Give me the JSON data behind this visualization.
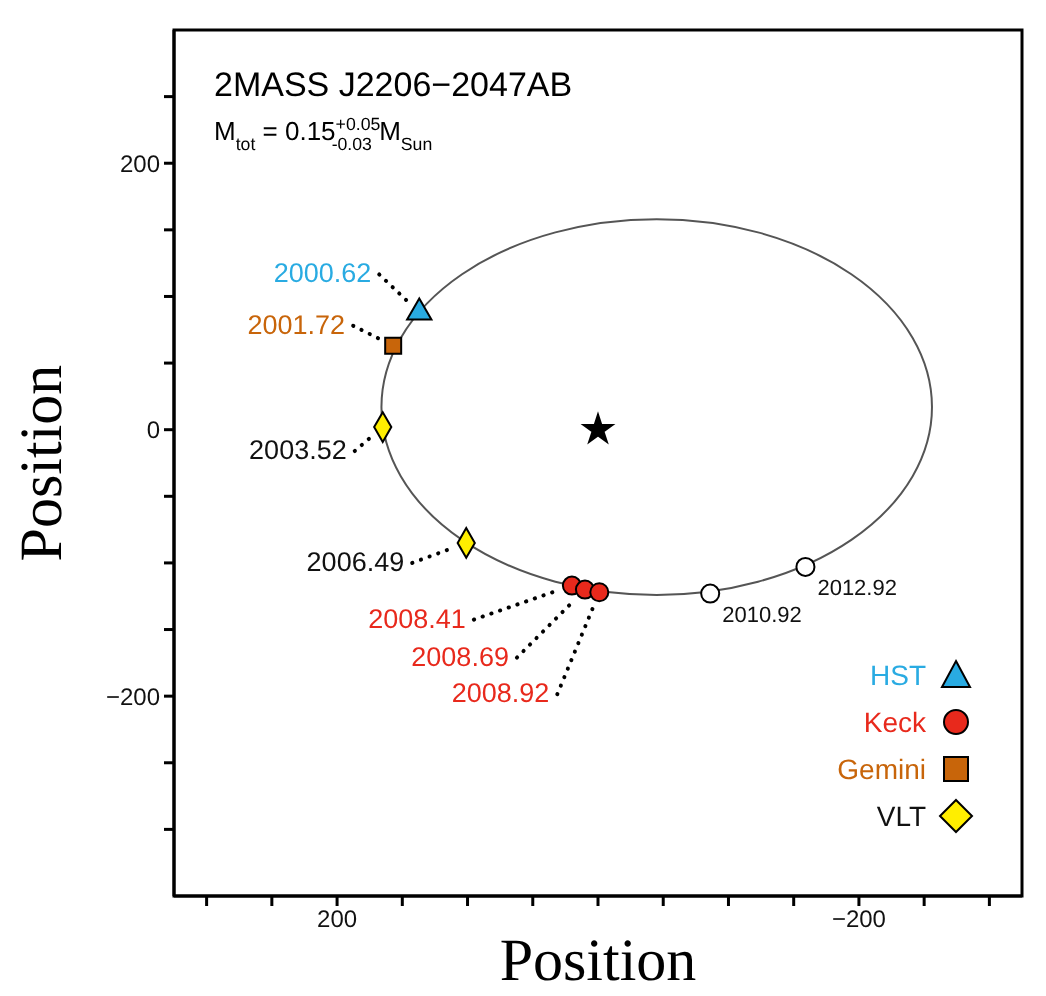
{
  "chart_data": {
    "type": "scatter",
    "title": "2MASS J2206−2047AB",
    "subtitle": "M$_{tot}$ = 0.15$^{+0.05}$$_{-0.03}$ M$_{Sun}$",
    "xlabel": "Position",
    "ylabel": "Position",
    "xlim": [
      325,
      -325
    ],
    "ylim": [
      -350,
      300
    ],
    "xticks": [
      {
        "value": 300,
        "label": null
      },
      {
        "value": 250,
        "label": null
      },
      200,
      {
        "value": 150,
        "label": null
      },
      {
        "value": 100,
        "label": null
      },
      {
        "value": 50,
        "label": null
      },
      {
        "value": 0,
        "label": null
      },
      {
        "value": -50,
        "label": null
      },
      {
        "value": -100,
        "label": null
      },
      {
        "value": -150,
        "label": null
      },
      {
        "value": -200,
        "label": "−200"
      },
      {
        "value": -250,
        "label": null
      },
      {
        "value": -300,
        "label": null
      }
    ],
    "yticks": [
      {
        "value": 250,
        "label": null
      },
      200,
      {
        "value": 150,
        "label": null
      },
      {
        "value": 100,
        "label": null
      },
      {
        "value": 50,
        "label": null
      },
      0,
      {
        "value": -50,
        "label": null
      },
      {
        "value": -100,
        "label": null
      },
      {
        "value": -150,
        "label": null
      },
      {
        "value": -200,
        "label": "−200"
      },
      {
        "value": -250,
        "label": null
      },
      {
        "value": -300,
        "label": null
      }
    ],
    "grid": false,
    "legend": "bottom right",
    "annotations": [
      {
        "text": "2000.62",
        "x": 137,
        "y": 88
      },
      {
        "text": "2001.72",
        "x": 157,
        "y": 63
      },
      {
        "text": "2003.52",
        "x": 165,
        "y": 2
      },
      {
        "text": "2006.49",
        "x": 101,
        "y": -85
      },
      {
        "text": "2008.41",
        "x": 20,
        "y": -117
      },
      {
        "text": "2008.69",
        "x": 10,
        "y": -120
      },
      {
        "text": "2008.92",
        "x": -1,
        "y": -122
      },
      {
        "text": "2010.92",
        "x": -86,
        "y": -123
      },
      {
        "text": "2012.92",
        "x": -159,
        "y": -103
      }
    ],
    "series": [
      {
        "name": "HST",
        "type": "scatter",
        "color": "#29abe2",
        "marker": "triangle",
        "x": [
          137
        ],
        "values": [
          88
        ]
      },
      {
        "name": "Keck",
        "type": "scatter",
        "color": "#e8291c",
        "marker": "circle",
        "x": [
          20,
          10,
          -1
        ],
        "values": [
          -117,
          -120,
          -122
        ]
      },
      {
        "name": "Gemini",
        "type": "scatter",
        "color": "#c8650a",
        "marker": "square",
        "x": [
          157
        ],
        "values": [
          63
        ]
      },
      {
        "name": "VLT",
        "type": "scatter",
        "color": "#ffee00",
        "marker": "diamond",
        "x": [
          165,
          101
        ],
        "values": [
          2,
          -85
        ]
      },
      {
        "type": "scatter",
        "color": "#ffffff",
        "marker": "circle",
        "x": [
          -86,
          -159
        ],
        "values": [
          -123,
          -103
        ]
      },
      {
        "type": "scatter",
        "color": "#000000",
        "marker": "star",
        "x": [
          0
        ],
        "values": [
          0
        ]
      }
    ]
  }
}
